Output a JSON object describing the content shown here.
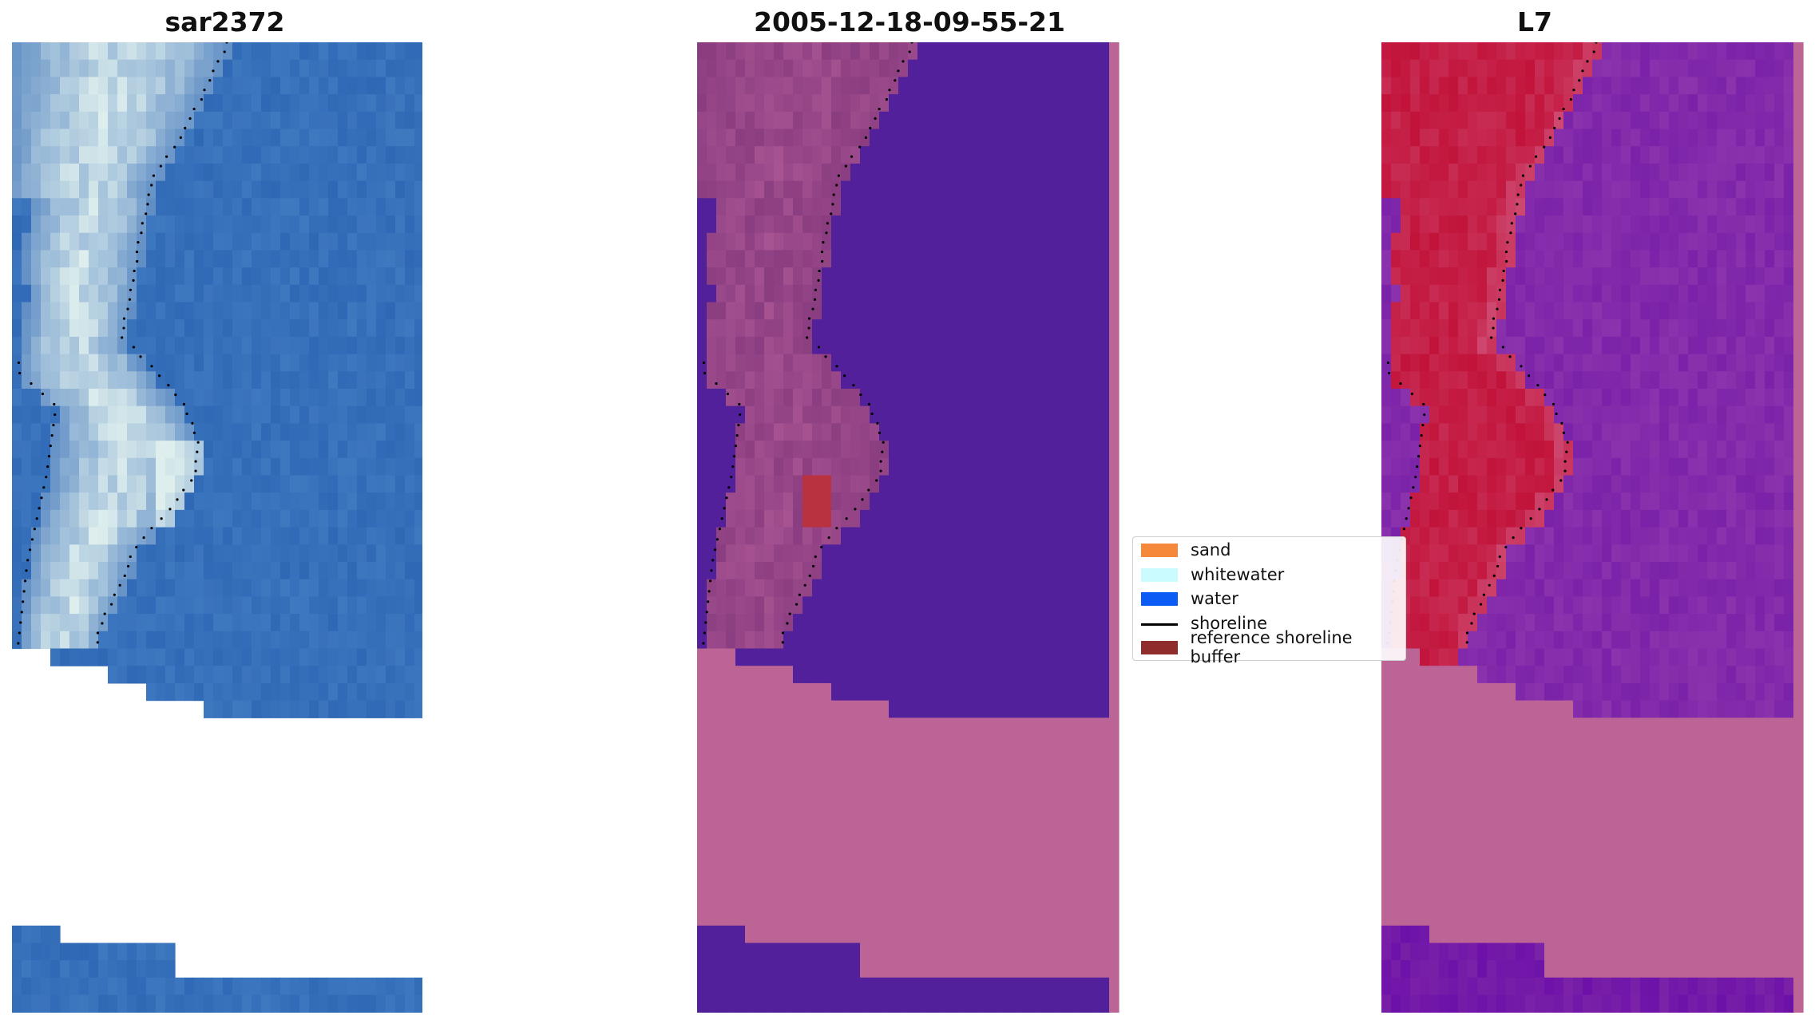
{
  "panels": [
    {
      "title": "sar2372",
      "kind": "rgb"
    },
    {
      "title": "2005-12-18-09-55-21",
      "kind": "classified"
    },
    {
      "title": "L7",
      "kind": "mndwi"
    }
  ],
  "legend": {
    "items": [
      {
        "label": "sand",
        "type": "patch",
        "color": "#f5883b"
      },
      {
        "label": "whitewater",
        "type": "patch",
        "color": "#c9fbff"
      },
      {
        "label": "water",
        "type": "patch",
        "color": "#0b5cf5"
      },
      {
        "label": "shoreline",
        "type": "line",
        "color": "#000000"
      },
      {
        "label": "reference shoreline buffer",
        "type": "patch",
        "color": "#8f2d2d"
      }
    ]
  },
  "colors": {
    "rgb_water": "#2f68b5",
    "classified_water": "#52209a",
    "classified_masked": "#bc6495",
    "classified_land": "#8a3d80",
    "classified_buffer": "#b8323f",
    "mndwi_land": "#c2133a",
    "mndwi_water": "#7a22a8",
    "mndwi_masked": "#bc6495"
  }
}
